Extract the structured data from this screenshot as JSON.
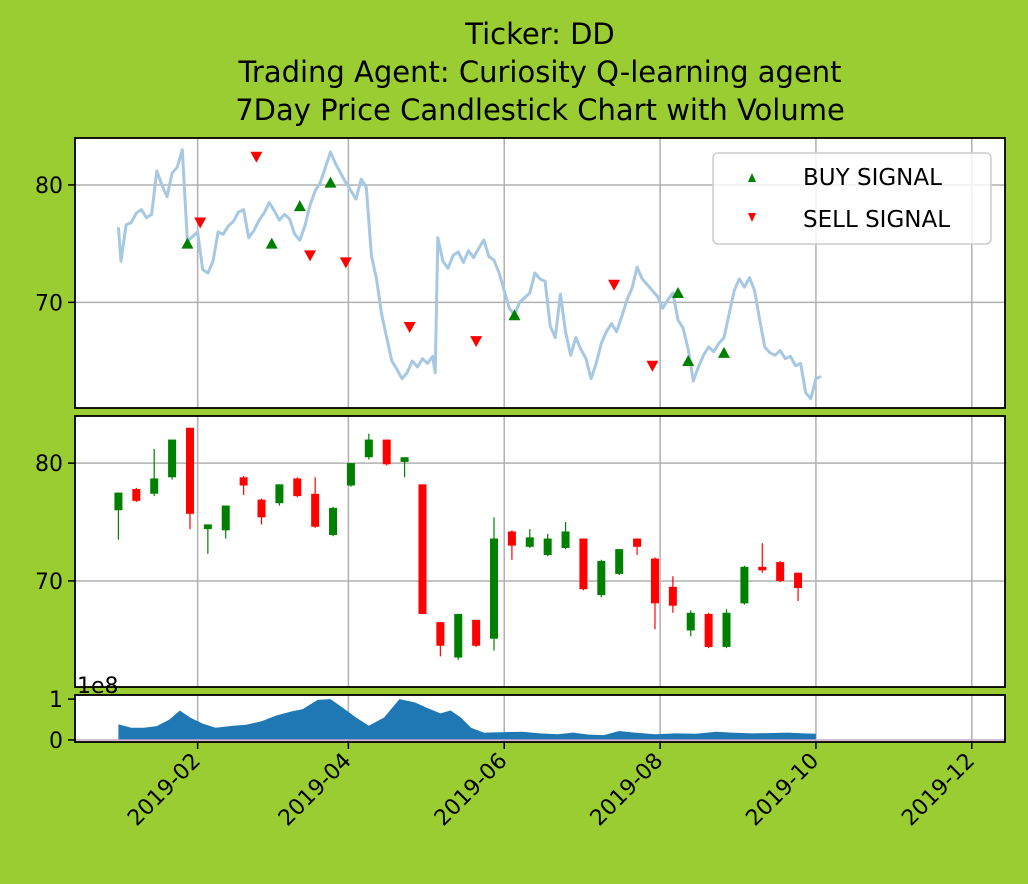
{
  "chart_data": {
    "type": "candlestick",
    "title_lines": [
      "Ticker: DD",
      "Trading Agent: Curiosity Q-learning agent",
      "7Day Price Candlestick Chart with Volume"
    ],
    "colors": {
      "background": "#9acd32",
      "line": "#a6c8e3",
      "up": "#008000",
      "down": "#ff0000",
      "volume": "#1f77b4",
      "buy": "#008000",
      "sell": "#ff0000",
      "grid": "#b0b0b0"
    },
    "x_ticks": [
      "2019-02",
      "2019-04",
      "2019-06",
      "2019-08",
      "2019-10",
      "2019-12"
    ],
    "x_tick_days": [
      31,
      90,
      151,
      212,
      273,
      334
    ],
    "x_range_days": [
      -17,
      347
    ],
    "price_panel": {
      "y_range": [
        61,
        84
      ],
      "y_ticks": [
        70,
        80
      ],
      "y_tick_labels": [
        "70",
        "80"
      ],
      "price_line": [
        [
          0,
          76.4
        ],
        [
          1,
          73.5
        ],
        [
          3,
          76.6
        ],
        [
          5,
          76.8
        ],
        [
          7,
          77.6
        ],
        [
          9,
          77.9
        ],
        [
          11,
          77.2
        ],
        [
          13,
          77.5
        ],
        [
          15,
          81.2
        ],
        [
          17,
          80.0
        ],
        [
          19,
          79.0
        ],
        [
          21,
          81.0
        ],
        [
          23,
          81.5
        ],
        [
          25,
          83.0
        ],
        [
          27,
          75.2
        ],
        [
          29,
          75.6
        ],
        [
          31,
          76.0
        ],
        [
          33,
          72.8
        ],
        [
          35,
          72.5
        ],
        [
          37,
          73.5
        ],
        [
          39,
          76.0
        ],
        [
          41,
          75.8
        ],
        [
          43,
          76.5
        ],
        [
          45,
          76.9
        ],
        [
          47,
          77.7
        ],
        [
          49,
          77.9
        ],
        [
          51,
          75.5
        ],
        [
          53,
          76.1
        ],
        [
          55,
          77.0
        ],
        [
          57,
          77.6
        ],
        [
          59,
          78.5
        ],
        [
          61,
          77.8
        ],
        [
          63,
          77.0
        ],
        [
          65,
          77.5
        ],
        [
          67,
          77.1
        ],
        [
          69,
          75.8
        ],
        [
          71,
          75.3
        ],
        [
          73,
          76.5
        ],
        [
          75,
          78.3
        ],
        [
          77,
          79.5
        ],
        [
          79,
          80.2
        ],
        [
          81,
          81.5
        ],
        [
          83,
          82.8
        ],
        [
          85,
          81.8
        ],
        [
          87,
          81.0
        ],
        [
          89,
          80.2
        ],
        [
          91,
          79.5
        ],
        [
          93,
          78.8
        ],
        [
          95,
          80.5
        ],
        [
          97,
          79.8
        ],
        [
          99,
          74.0
        ],
        [
          101,
          72.0
        ],
        [
          103,
          69.0
        ],
        [
          105,
          67.0
        ],
        [
          107,
          65.0
        ],
        [
          109,
          64.3
        ],
        [
          111,
          63.5
        ],
        [
          113,
          64.0
        ],
        [
          115,
          65.0
        ],
        [
          117,
          64.5
        ],
        [
          119,
          65.2
        ],
        [
          121,
          64.8
        ],
        [
          123,
          65.4
        ],
        [
          124,
          64.0
        ],
        [
          125,
          75.5
        ],
        [
          127,
          73.5
        ],
        [
          129,
          72.9
        ],
        [
          131,
          74.0
        ],
        [
          133,
          74.3
        ],
        [
          135,
          73.4
        ],
        [
          137,
          74.4
        ],
        [
          139,
          73.8
        ],
        [
          141,
          74.6
        ],
        [
          143,
          75.3
        ],
        [
          145,
          73.9
        ],
        [
          147,
          73.6
        ],
        [
          149,
          72.5
        ],
        [
          151,
          71.0
        ],
        [
          153,
          69.5
        ],
        [
          155,
          68.9
        ],
        [
          157,
          70.0
        ],
        [
          159,
          70.4
        ],
        [
          161,
          70.8
        ],
        [
          163,
          72.5
        ],
        [
          165,
          72.0
        ],
        [
          167,
          71.8
        ],
        [
          169,
          68.0
        ],
        [
          171,
          67.0
        ],
        [
          173,
          70.7
        ],
        [
          175,
          67.5
        ],
        [
          177,
          65.5
        ],
        [
          179,
          67.0
        ],
        [
          181,
          66.0
        ],
        [
          183,
          65.2
        ],
        [
          185,
          63.5
        ],
        [
          187,
          64.8
        ],
        [
          189,
          66.5
        ],
        [
          191,
          67.5
        ],
        [
          193,
          68.2
        ],
        [
          195,
          67.5
        ],
        [
          197,
          68.8
        ],
        [
          199,
          70.2
        ],
        [
          201,
          71.2
        ],
        [
          203,
          73.0
        ],
        [
          205,
          72.0
        ],
        [
          207,
          71.5
        ],
        [
          209,
          71.0
        ],
        [
          211,
          70.5
        ],
        [
          213,
          69.5
        ],
        [
          215,
          70.2
        ],
        [
          217,
          70.8
        ],
        [
          219,
          68.5
        ],
        [
          221,
          67.8
        ],
        [
          223,
          66.0
        ],
        [
          225,
          63.3
        ],
        [
          227,
          64.5
        ],
        [
          229,
          65.5
        ],
        [
          231,
          66.2
        ],
        [
          233,
          65.8
        ],
        [
          235,
          66.5
        ],
        [
          237,
          67.0
        ],
        [
          239,
          69.0
        ],
        [
          241,
          71.0
        ],
        [
          243,
          72.0
        ],
        [
          245,
          71.3
        ],
        [
          247,
          72.1
        ],
        [
          249,
          71.0
        ],
        [
          251,
          68.5
        ],
        [
          253,
          66.2
        ],
        [
          255,
          65.7
        ],
        [
          257,
          65.5
        ],
        [
          259,
          65.9
        ],
        [
          261,
          65.2
        ],
        [
          263,
          65.4
        ],
        [
          265,
          64.6
        ],
        [
          267,
          64.8
        ],
        [
          269,
          62.3
        ],
        [
          271,
          61.8
        ],
        [
          273,
          63.5
        ],
        [
          275,
          63.7
        ]
      ],
      "buy_signals": [
        [
          27,
          75.0
        ],
        [
          60,
          75.0
        ],
        [
          71,
          78.2
        ],
        [
          83,
          80.2
        ],
        [
          155,
          68.9
        ],
        [
          219,
          70.8
        ],
        [
          223,
          65.0
        ],
        [
          237,
          65.7
        ]
      ],
      "sell_signals": [
        [
          32,
          76.8
        ],
        [
          54,
          82.4
        ],
        [
          75,
          74.0
        ],
        [
          89,
          73.4
        ],
        [
          114,
          67.9
        ],
        [
          140,
          66.7
        ],
        [
          194,
          71.5
        ],
        [
          209,
          64.6
        ]
      ],
      "legend": {
        "placement": "top-right",
        "entries": [
          "BUY SIGNAL",
          "SELL SIGNAL"
        ]
      }
    },
    "candle_panel": {
      "y_range": [
        61,
        84
      ],
      "y_ticks": [
        70,
        80
      ],
      "y_tick_labels": [
        "70",
        "80"
      ],
      "candles": [
        {
          "d": 0,
          "o": 76.0,
          "c": 77.5,
          "h": 77.5,
          "l": 73.5
        },
        {
          "d": 7,
          "o": 77.8,
          "c": 76.8,
          "h": 77.9,
          "l": 76.7
        },
        {
          "d": 14,
          "o": 77.4,
          "c": 78.7,
          "h": 81.2,
          "l": 77.2
        },
        {
          "d": 21,
          "o": 78.8,
          "c": 82.0,
          "h": 82.0,
          "l": 78.6
        },
        {
          "d": 28,
          "o": 83.0,
          "c": 75.7,
          "h": 83.0,
          "l": 74.4
        },
        {
          "d": 35,
          "o": 74.4,
          "c": 74.8,
          "h": 74.8,
          "l": 72.3
        },
        {
          "d": 42,
          "o": 74.3,
          "c": 76.4,
          "h": 76.4,
          "l": 73.6
        },
        {
          "d": 49,
          "o": 78.8,
          "c": 78.1,
          "h": 78.9,
          "l": 77.3
        },
        {
          "d": 56,
          "o": 76.9,
          "c": 75.4,
          "h": 77.0,
          "l": 74.8
        },
        {
          "d": 63,
          "o": 76.6,
          "c": 78.2,
          "h": 78.2,
          "l": 76.4
        },
        {
          "d": 70,
          "o": 78.7,
          "c": 77.2,
          "h": 78.8,
          "l": 77.1
        },
        {
          "d": 77,
          "o": 77.4,
          "c": 74.6,
          "h": 78.8,
          "l": 74.5
        },
        {
          "d": 84,
          "o": 73.9,
          "c": 76.2,
          "h": 76.3,
          "l": 73.8
        },
        {
          "d": 91,
          "o": 78.1,
          "c": 80.0,
          "h": 80.0,
          "l": 78.0
        },
        {
          "d": 98,
          "o": 80.5,
          "c": 82.0,
          "h": 82.5,
          "l": 80.3
        },
        {
          "d": 105,
          "o": 82.0,
          "c": 79.9,
          "h": 82.0,
          "l": 79.8
        },
        {
          "d": 112,
          "o": 80.1,
          "c": 80.5,
          "h": 80.5,
          "l": 78.8
        },
        {
          "d": 119,
          "o": 78.2,
          "c": 67.2,
          "h": 78.2,
          "l": 67.2
        },
        {
          "d": 126,
          "o": 66.5,
          "c": 64.5,
          "h": 66.5,
          "l": 63.6
        },
        {
          "d": 133,
          "o": 63.5,
          "c": 67.2,
          "h": 67.2,
          "l": 63.3
        },
        {
          "d": 140,
          "o": 66.7,
          "c": 64.5,
          "h": 66.7,
          "l": 64.4
        },
        {
          "d": 147,
          "o": 65.1,
          "c": 73.6,
          "h": 75.4,
          "l": 64.1
        },
        {
          "d": 154,
          "o": 74.2,
          "c": 73.0,
          "h": 74.3,
          "l": 71.8
        },
        {
          "d": 161,
          "o": 72.9,
          "c": 73.7,
          "h": 74.4,
          "l": 72.8
        },
        {
          "d": 168,
          "o": 72.2,
          "c": 73.6,
          "h": 74.0,
          "l": 72.1
        },
        {
          "d": 175,
          "o": 72.8,
          "c": 74.2,
          "h": 75.0,
          "l": 72.7
        },
        {
          "d": 182,
          "o": 73.6,
          "c": 69.3,
          "h": 73.6,
          "l": 69.2
        },
        {
          "d": 189,
          "o": 68.8,
          "c": 71.7,
          "h": 71.8,
          "l": 68.6
        },
        {
          "d": 196,
          "o": 70.6,
          "c": 72.7,
          "h": 72.7,
          "l": 70.5
        },
        {
          "d": 203,
          "o": 73.6,
          "c": 72.9,
          "h": 73.6,
          "l": 72.2
        },
        {
          "d": 210,
          "o": 71.9,
          "c": 68.1,
          "h": 72.0,
          "l": 65.9
        },
        {
          "d": 217,
          "o": 69.5,
          "c": 67.9,
          "h": 70.4,
          "l": 67.3
        },
        {
          "d": 224,
          "o": 65.8,
          "c": 67.3,
          "h": 67.5,
          "l": 65.3
        },
        {
          "d": 231,
          "o": 67.2,
          "c": 64.4,
          "h": 67.3,
          "l": 64.3
        },
        {
          "d": 238,
          "o": 64.4,
          "c": 67.3,
          "h": 67.6,
          "l": 64.3
        },
        {
          "d": 245,
          "o": 68.1,
          "c": 71.2,
          "h": 71.3,
          "l": 68.0
        },
        {
          "d": 252,
          "o": 71.2,
          "c": 70.9,
          "h": 73.2,
          "l": 70.7
        },
        {
          "d": 259,
          "o": 71.6,
          "c": 70.0,
          "h": 71.7,
          "l": 69.9
        },
        {
          "d": 266,
          "o": 70.7,
          "c": 69.4,
          "h": 70.7,
          "l": 68.3
        }
      ]
    },
    "volume_panel": {
      "y_offset_label": "1e8",
      "y_ticks": [
        0,
        1
      ],
      "y_tick_labels": [
        "0",
        "1"
      ],
      "y_range": [
        -0.05,
        1.1
      ],
      "volume": [
        [
          0,
          0.38
        ],
        [
          5,
          0.3
        ],
        [
          10,
          0.3
        ],
        [
          15,
          0.34
        ],
        [
          20,
          0.5
        ],
        [
          24,
          0.72
        ],
        [
          28,
          0.55
        ],
        [
          33,
          0.4
        ],
        [
          38,
          0.3
        ],
        [
          45,
          0.35
        ],
        [
          50,
          0.37
        ],
        [
          56,
          0.46
        ],
        [
          62,
          0.6
        ],
        [
          68,
          0.7
        ],
        [
          72,
          0.75
        ],
        [
          78,
          0.98
        ],
        [
          83,
          1.0
        ],
        [
          88,
          0.78
        ],
        [
          93,
          0.55
        ],
        [
          98,
          0.35
        ],
        [
          104,
          0.55
        ],
        [
          110,
          1.0
        ],
        [
          116,
          0.92
        ],
        [
          121,
          0.78
        ],
        [
          126,
          0.65
        ],
        [
          130,
          0.72
        ],
        [
          134,
          0.55
        ],
        [
          138,
          0.3
        ],
        [
          143,
          0.18
        ],
        [
          150,
          0.19
        ],
        [
          158,
          0.2
        ],
        [
          165,
          0.16
        ],
        [
          172,
          0.14
        ],
        [
          178,
          0.18
        ],
        [
          184,
          0.13
        ],
        [
          190,
          0.12
        ],
        [
          196,
          0.22
        ],
        [
          202,
          0.18
        ],
        [
          210,
          0.14
        ],
        [
          218,
          0.16
        ],
        [
          226,
          0.15
        ],
        [
          234,
          0.2
        ],
        [
          240,
          0.18
        ],
        [
          248,
          0.16
        ],
        [
          256,
          0.17
        ],
        [
          262,
          0.18
        ],
        [
          268,
          0.16
        ],
        [
          273,
          0.15
        ]
      ]
    }
  }
}
